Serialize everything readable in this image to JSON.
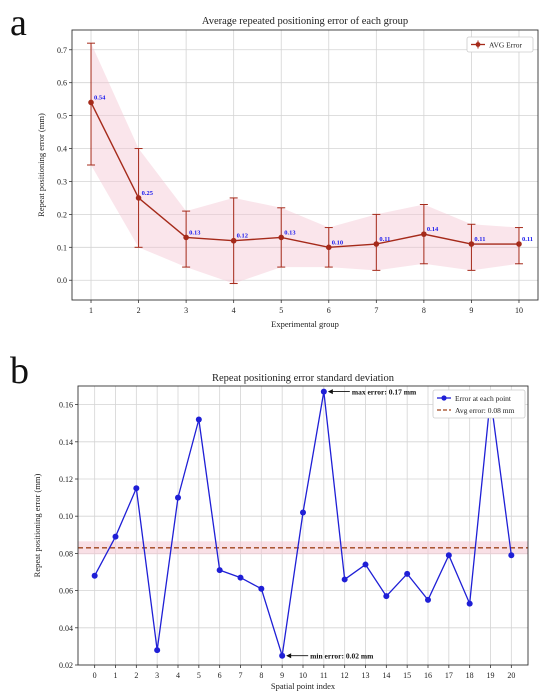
{
  "panel_labels": [
    "a",
    "b"
  ],
  "chart_data": [
    {
      "type": "line",
      "title": "Average repeated positioning error of each group",
      "xlabel": "Experimental group",
      "ylabel": "Repeat positioning error (mm)",
      "xlim": [
        0.6,
        10.4
      ],
      "ylim": [
        -0.06,
        0.76
      ],
      "x_ticks": [
        "1",
        "2",
        "3",
        "4",
        "5",
        "6",
        "7",
        "8",
        "9",
        "10"
      ],
      "y_ticks": [
        "0.0",
        "0.1",
        "0.2",
        "0.3",
        "0.4",
        "0.5",
        "0.6",
        "0.7"
      ],
      "grid": true,
      "legend_position": "top-right",
      "colors": {
        "line": "#a52a1a",
        "band": "#f4c6d2",
        "label": "#1a1aee"
      },
      "series": [
        {
          "name": "AVG Error",
          "x": [
            1,
            2,
            3,
            4,
            5,
            6,
            7,
            8,
            9,
            10
          ],
          "y": [
            0.54,
            0.25,
            0.13,
            0.12,
            0.13,
            0.1,
            0.11,
            0.14,
            0.11,
            0.11
          ],
          "err_low": [
            0.35,
            0.1,
            0.04,
            -0.01,
            0.04,
            0.04,
            0.03,
            0.05,
            0.03,
            0.05
          ],
          "err_high": [
            0.72,
            0.4,
            0.21,
            0.25,
            0.22,
            0.16,
            0.2,
            0.23,
            0.17,
            0.16
          ],
          "value_labels": [
            "0.54",
            "0.25",
            "0.13",
            "0.12",
            "0.13",
            "0.10",
            "0.11",
            "0.14",
            "0.11",
            "0.11"
          ]
        }
      ]
    },
    {
      "type": "line",
      "title": "Repeat positioning error standard deviation",
      "xlabel": "Spatial point index",
      "ylabel": "Repeat positioning error (mm)",
      "xlim": [
        -0.8,
        20.8
      ],
      "ylim": [
        0.02,
        0.17
      ],
      "x_ticks": [
        "0",
        "1",
        "2",
        "3",
        "4",
        "5",
        "6",
        "7",
        "8",
        "9",
        "10",
        "11",
        "12",
        "13",
        "14",
        "15",
        "16",
        "17",
        "18",
        "19",
        "20"
      ],
      "y_ticks": [
        "0.02",
        "0.04",
        "0.06",
        "0.08",
        "0.10",
        "0.12",
        "0.14",
        "0.16"
      ],
      "grid": true,
      "legend_position": "top-right",
      "colors": {
        "line": "#1f1fd6",
        "avg": "#a0451c",
        "band": "#f4c6d2"
      },
      "series": [
        {
          "name": "Error at each point",
          "x": [
            0,
            1,
            2,
            3,
            4,
            5,
            6,
            7,
            8,
            9,
            10,
            11,
            12,
            13,
            14,
            15,
            16,
            17,
            18,
            19,
            20
          ],
          "y": [
            0.068,
            0.089,
            0.115,
            0.028,
            0.11,
            0.152,
            0.071,
            0.067,
            0.061,
            0.025,
            0.102,
            0.167,
            0.066,
            0.074,
            0.057,
            0.069,
            0.055,
            0.079,
            0.053,
            0.164,
            0.079
          ]
        },
        {
          "name": "Avg error: 0.08 mm",
          "y": 0.083,
          "band": [
            0.0795,
            0.0865
          ]
        }
      ],
      "annotations": [
        {
          "text": "max error: 0.17 mm",
          "x": 11,
          "y": 0.167
        },
        {
          "text": "min error: 0.02 mm",
          "x": 9,
          "y": 0.025
        }
      ]
    }
  ]
}
